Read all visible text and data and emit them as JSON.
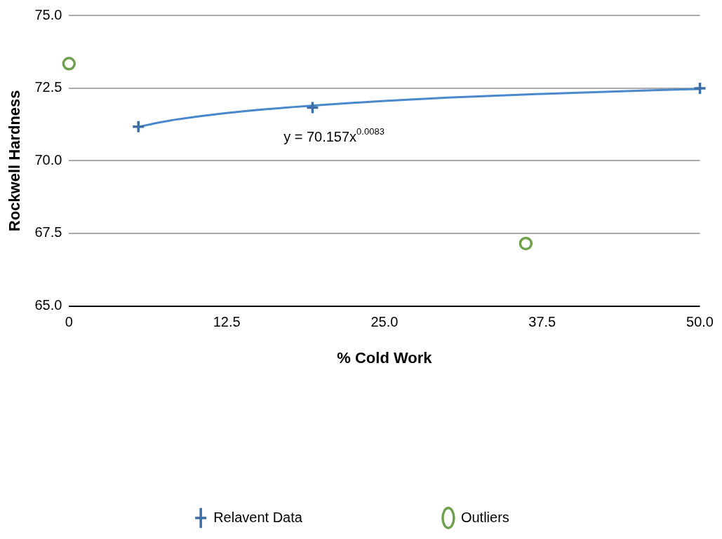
{
  "chart_data": {
    "type": "scatter",
    "xlabel": "% Cold Work",
    "ylabel": "Rockwell Hardness",
    "xlim": [
      0,
      50
    ],
    "xticks": [
      0,
      12.5,
      {
        "value": 25,
        "label": "25.0"
      },
      37.5,
      {
        "value": 50,
        "label": "50.0"
      }
    ],
    "ylim": [
      65,
      75
    ],
    "yticks": [
      {
        "value": 65,
        "label": "65.0"
      },
      67.5,
      {
        "value": 70,
        "label": "70.0"
      },
      72.5,
      {
        "value": 75,
        "label": "75.0"
      }
    ],
    "grid": "y",
    "legend": "bottom",
    "series": [
      {
        "name": "Relavent Data",
        "color": "#3d6ea5",
        "marker": "cross",
        "x": [
          5.5,
          19.3,
          50
        ],
        "values": [
          71.17,
          71.83,
          72.49
        ]
      },
      {
        "name": "Outliers",
        "color": "#6fa14d",
        "marker": "circle",
        "x": [
          0,
          36.2
        ],
        "values": [
          73.34,
          67.15
        ]
      },
      {
        "type": "line",
        "color": "#4a88cc",
        "marker": "none",
        "x": [
          5.5,
          6,
          8,
          10,
          12.5,
          15,
          20,
          25,
          30,
          37.5,
          45,
          50
        ],
        "values": [
          71.16,
          71.21,
          71.38,
          71.51,
          71.64,
          71.75,
          71.92,
          72.06,
          72.17,
          72.3,
          72.41,
          72.47
        ]
      }
    ],
    "annotations": [
      "y = 70.157x$^{0.0083}$"
    ]
  }
}
